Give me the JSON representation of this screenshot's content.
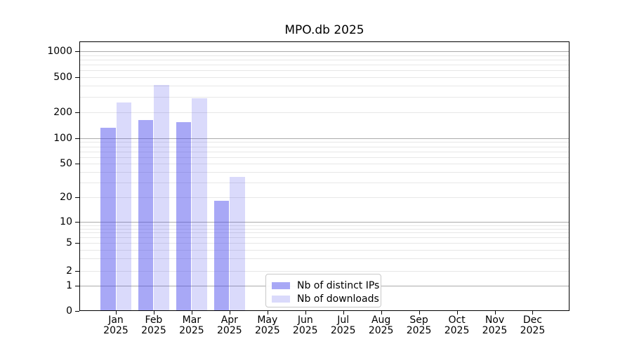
{
  "chart_data": {
    "type": "bar",
    "title": "MPO.db 2025",
    "scale": "symlog",
    "grid": true,
    "legend_position": "lower center",
    "ylim": [
      0,
      1300
    ],
    "yticks": [
      0,
      1,
      2,
      5,
      10,
      20,
      50,
      100,
      200,
      500,
      1000
    ],
    "categories": [
      {
        "month": "Jan",
        "year": "2025"
      },
      {
        "month": "Feb",
        "year": "2025"
      },
      {
        "month": "Mar",
        "year": "2025"
      },
      {
        "month": "Apr",
        "year": "2025"
      },
      {
        "month": "May",
        "year": "2025"
      },
      {
        "month": "Jun",
        "year": "2025"
      },
      {
        "month": "Jul",
        "year": "2025"
      },
      {
        "month": "Aug",
        "year": "2025"
      },
      {
        "month": "Sep",
        "year": "2025"
      },
      {
        "month": "Oct",
        "year": "2025"
      },
      {
        "month": "Nov",
        "year": "2025"
      },
      {
        "month": "Dec",
        "year": "2025"
      }
    ],
    "series": [
      {
        "name": "Nb of distinct IPs",
        "color": "rgba(70,70,235,0.47)",
        "values": [
          132,
          163,
          153,
          18,
          0,
          0,
          0,
          0,
          0,
          0,
          0,
          0
        ]
      },
      {
        "name": "Nb of downloads",
        "color": "rgba(70,70,235,0.20)",
        "values": [
          256,
          404,
          289,
          35,
          0,
          0,
          0,
          0,
          0,
          0,
          0,
          0
        ]
      }
    ]
  },
  "colors": {
    "bar_distinct_ips": "rgba(70,70,235,0.47)",
    "bar_downloads": "rgba(70,70,235,0.20)",
    "grid_minor": "#e7e7e7",
    "grid_major": "#ababab",
    "frame": "#000000",
    "legend_border": "#c9c9c9",
    "text": "#000000"
  }
}
